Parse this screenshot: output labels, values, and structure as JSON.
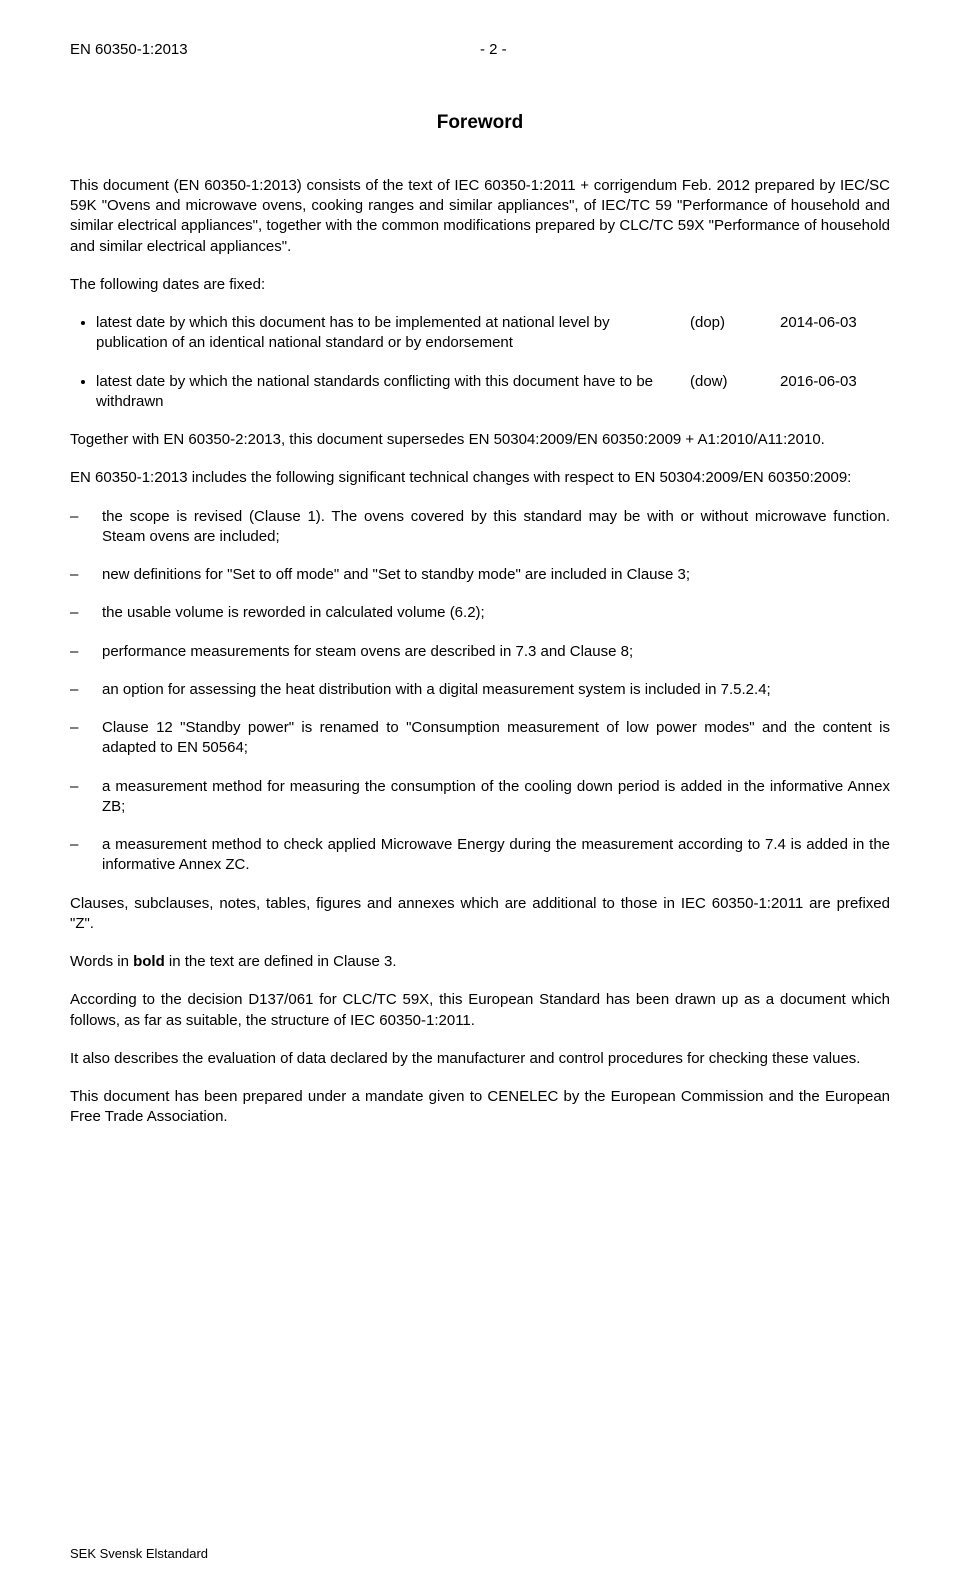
{
  "header": {
    "doc_id": "EN 60350-1:2013",
    "page_num": "- 2 -"
  },
  "title": "Foreword",
  "intro_1": "This document (EN 60350-1:2013) consists of the text of IEC 60350-1:2011 + corrigendum Feb. 2012 prepared by IEC/SC 59K \"Ovens and microwave ovens, cooking ranges and similar appliances\", of IEC/TC 59 \"Performance of household and similar electrical appliances\", together with the common modifications prepared by CLC/TC 59X \"Performance of household and similar electrical appliances\".",
  "intro_2": "The following dates are fixed:",
  "dates": [
    {
      "text": "latest date by which this document has to be implemented at national level by publication of an identical national standard or by endorsement",
      "label": "(dop)",
      "date": "2014-06-03"
    },
    {
      "text": "latest date by which the national standards conflicting with this document have to be withdrawn",
      "label": "(dow)",
      "date": "2016-06-03"
    }
  ],
  "together": "Together with EN 60350-2:2013, this document supersedes EN 50304:2009/EN 60350:2009 + A1:2010/A11:2010.",
  "includes": "EN 60350-1:2013 includes the following significant technical changes with respect to EN 50304:2009/EN 60350:2009:",
  "changes": [
    "the scope is revised (Clause 1). The ovens covered by this standard may be with or without microwave function. Steam ovens are included;",
    "new definitions for \"Set to off mode\" and \"Set to standby mode\" are included in Clause 3;",
    "the usable volume is reworded in calculated volume (6.2);",
    "performance measurements for steam ovens are described in 7.3 and Clause 8;",
    "an option for assessing the heat distribution with a digital measurement system is included in 7.5.2.4;",
    "Clause 12 \"Standby power\" is renamed to \"Consumption measurement of low power modes\" and the content is adapted to EN 50564;",
    "a measurement method for measuring the consumption of the cooling down period is added in the informative Annex ZB;",
    "a measurement method to check applied Microwave Energy during the measurement according to 7.4 is added in the informative Annex ZC."
  ],
  "clauses": "Clauses, subclauses, notes, tables, figures and annexes which are additional to those in IEC 60350-1:2011 are prefixed \"Z\".",
  "bold_prefix": "Words in ",
  "bold_word": "bold",
  "bold_suffix": " in the text are defined in Clause 3.",
  "decision": "According to the decision D137/061 for CLC/TC 59X, this European Standard has been drawn up as a document which follows, as far as suitable, the structure of IEC 60350-1:2011.",
  "evaluation": "It also describes the evaluation of data declared by the manufacturer and control procedures for checking these values.",
  "mandate": "This document has been prepared under a mandate given to CENELEC by the European Commission and the European Free Trade Association.",
  "footer": "SEK Svensk Elstandard"
}
